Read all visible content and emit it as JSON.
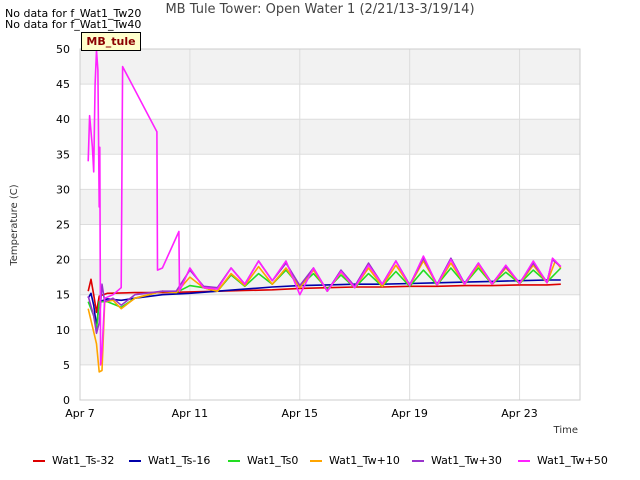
{
  "notices": [
    "No data for f_Wat1_Tw20",
    "No data for f_Wat1_Tw40"
  ],
  "site_tag": "MB_tule",
  "chart_data": {
    "type": "line",
    "title": "MB Tule Tower: Open Water 1 (2/21/13-3/19/14)",
    "xlabel": "Time",
    "ylabel": "Temperature (C)",
    "xlim": [
      7,
      25.2
    ],
    "ylim": [
      0,
      50
    ],
    "yticks": [
      0,
      5,
      10,
      15,
      20,
      25,
      30,
      35,
      40,
      45,
      50
    ],
    "xticks": [
      {
        "label": "Apr 7",
        "day": 7
      },
      {
        "label": "Apr 11",
        "day": 11
      },
      {
        "label": "Apr 15",
        "day": 15
      },
      {
        "label": "Apr 19",
        "day": 19
      },
      {
        "label": "Apr 23",
        "day": 23
      }
    ],
    "series": [
      {
        "name": "Wat1_Ts-32",
        "color": "#dd0000",
        "points": [
          [
            7.3,
            15.5
          ],
          [
            7.4,
            17.2
          ],
          [
            7.5,
            15.0
          ],
          [
            7.6,
            12.5
          ],
          [
            7.7,
            14.8
          ],
          [
            8.0,
            15.2
          ],
          [
            9.0,
            15.3
          ],
          [
            10.0,
            15.3
          ],
          [
            11.0,
            15.4
          ],
          [
            12.0,
            15.5
          ],
          [
            13.0,
            15.6
          ],
          [
            14.0,
            15.7
          ],
          [
            15.0,
            15.9
          ],
          [
            16.0,
            16.0
          ],
          [
            17.0,
            16.1
          ],
          [
            18.0,
            16.1
          ],
          [
            19.0,
            16.2
          ],
          [
            20.0,
            16.2
          ],
          [
            21.0,
            16.3
          ],
          [
            22.0,
            16.3
          ],
          [
            23.0,
            16.4
          ],
          [
            24.0,
            16.4
          ],
          [
            24.5,
            16.5
          ]
        ]
      },
      {
        "name": "Wat1_Ts-16",
        "color": "#0000aa",
        "points": [
          [
            7.3,
            14.5
          ],
          [
            7.4,
            15.2
          ],
          [
            7.5,
            13.5
          ],
          [
            7.6,
            10.5
          ],
          [
            7.7,
            14.0
          ],
          [
            8.0,
            14.4
          ],
          [
            8.5,
            14.2
          ],
          [
            9.0,
            14.5
          ],
          [
            10.0,
            15.0
          ],
          [
            11.0,
            15.2
          ],
          [
            12.0,
            15.5
          ],
          [
            13.0,
            15.8
          ],
          [
            14.0,
            16.1
          ],
          [
            15.0,
            16.3
          ],
          [
            16.0,
            16.4
          ],
          [
            17.0,
            16.5
          ],
          [
            18.0,
            16.5
          ],
          [
            19.0,
            16.6
          ],
          [
            20.0,
            16.7
          ],
          [
            21.0,
            16.8
          ],
          [
            22.0,
            16.9
          ],
          [
            23.0,
            17.0
          ],
          [
            24.0,
            17.1
          ],
          [
            24.5,
            17.1
          ]
        ]
      },
      {
        "name": "Wat1_Ts0",
        "color": "#22dd22",
        "points": [
          [
            7.3,
            14.0
          ],
          [
            7.5,
            12.0
          ],
          [
            7.6,
            10.0
          ],
          [
            7.7,
            14.0
          ],
          [
            8.0,
            14.0
          ],
          [
            8.5,
            13.2
          ],
          [
            9.0,
            14.5
          ],
          [
            10.0,
            15.5
          ],
          [
            10.5,
            15.3
          ],
          [
            11.0,
            16.3
          ],
          [
            11.5,
            16.0
          ],
          [
            12.0,
            15.5
          ],
          [
            12.5,
            17.8
          ],
          [
            13.0,
            16.2
          ],
          [
            13.5,
            18.0
          ],
          [
            14.0,
            16.5
          ],
          [
            14.5,
            18.5
          ],
          [
            15.0,
            16.2
          ],
          [
            15.5,
            18.0
          ],
          [
            16.0,
            15.8
          ],
          [
            16.5,
            17.8
          ],
          [
            17.0,
            16.0
          ],
          [
            17.5,
            18.0
          ],
          [
            18.0,
            16.2
          ],
          [
            18.5,
            18.3
          ],
          [
            19.0,
            16.2
          ],
          [
            19.5,
            18.5
          ],
          [
            20.0,
            16.4
          ],
          [
            20.5,
            18.8
          ],
          [
            21.0,
            16.5
          ],
          [
            21.5,
            18.8
          ],
          [
            22.0,
            16.5
          ],
          [
            22.5,
            18.2
          ],
          [
            23.0,
            16.6
          ],
          [
            23.5,
            18.5
          ],
          [
            24.0,
            16.8
          ],
          [
            24.5,
            18.8
          ]
        ]
      },
      {
        "name": "Wat1_Tw+10",
        "color": "#ffa500",
        "points": [
          [
            7.3,
            13.0
          ],
          [
            7.45,
            10.5
          ],
          [
            7.6,
            8.0
          ],
          [
            7.7,
            4.0
          ],
          [
            7.8,
            4.2
          ],
          [
            7.9,
            14.0
          ],
          [
            8.2,
            14.2
          ],
          [
            8.5,
            13.0
          ],
          [
            9.0,
            14.5
          ],
          [
            10.0,
            15.5
          ],
          [
            10.5,
            15.3
          ],
          [
            11.0,
            17.5
          ],
          [
            11.5,
            16.0
          ],
          [
            12.0,
            15.5
          ],
          [
            12.5,
            18.0
          ],
          [
            13.0,
            16.3
          ],
          [
            13.5,
            19.0
          ],
          [
            14.0,
            16.5
          ],
          [
            14.5,
            18.8
          ],
          [
            15.0,
            16.0
          ],
          [
            15.5,
            18.5
          ],
          [
            16.0,
            15.5
          ],
          [
            16.5,
            18.2
          ],
          [
            17.0,
            16.0
          ],
          [
            17.5,
            18.8
          ],
          [
            18.0,
            16.2
          ],
          [
            18.5,
            19.2
          ],
          [
            19.0,
            16.3
          ],
          [
            19.5,
            19.8
          ],
          [
            20.0,
            16.4
          ],
          [
            20.5,
            19.5
          ],
          [
            21.0,
            16.5
          ],
          [
            21.5,
            19.2
          ],
          [
            22.0,
            16.5
          ],
          [
            22.5,
            18.8
          ],
          [
            23.0,
            16.6
          ],
          [
            23.5,
            19.2
          ],
          [
            24.0,
            16.7
          ],
          [
            24.3,
            19.8
          ],
          [
            24.5,
            18.8
          ]
        ]
      },
      {
        "name": "Wat1_Tw+30",
        "color": "#9933cc",
        "points": [
          [
            7.3,
            14.8
          ],
          [
            7.5,
            12.0
          ],
          [
            7.6,
            9.5
          ],
          [
            7.7,
            11.0
          ],
          [
            7.8,
            16.5
          ],
          [
            7.9,
            14.0
          ],
          [
            8.2,
            14.5
          ],
          [
            8.5,
            13.5
          ],
          [
            9.0,
            15.0
          ],
          [
            10.0,
            15.5
          ],
          [
            10.5,
            15.5
          ],
          [
            11.0,
            18.5
          ],
          [
            11.5,
            16.2
          ],
          [
            12.0,
            16.0
          ],
          [
            12.5,
            18.8
          ],
          [
            13.0,
            16.5
          ],
          [
            13.5,
            19.8
          ],
          [
            14.0,
            17.0
          ],
          [
            14.5,
            19.5
          ],
          [
            15.0,
            16.3
          ],
          [
            15.5,
            18.8
          ],
          [
            16.0,
            15.5
          ],
          [
            16.5,
            18.5
          ],
          [
            17.0,
            16.2
          ],
          [
            17.5,
            19.5
          ],
          [
            18.0,
            16.5
          ],
          [
            18.5,
            19.8
          ],
          [
            19.0,
            16.4
          ],
          [
            19.5,
            20.2
          ],
          [
            20.0,
            16.5
          ],
          [
            20.5,
            20.2
          ],
          [
            21.0,
            16.6
          ],
          [
            21.5,
            19.5
          ],
          [
            22.0,
            16.6
          ],
          [
            22.5,
            19.0
          ],
          [
            23.0,
            16.7
          ],
          [
            23.5,
            19.5
          ],
          [
            24.0,
            16.8
          ],
          [
            24.2,
            20.0
          ],
          [
            24.5,
            19.0
          ]
        ]
      },
      {
        "name": "Wat1_Tw+50",
        "color": "#ff22ff",
        "points": [
          [
            7.3,
            34.0
          ],
          [
            7.35,
            40.5
          ],
          [
            7.45,
            36.0
          ],
          [
            7.5,
            32.5
          ],
          [
            7.55,
            45.0
          ],
          [
            7.6,
            49.8
          ],
          [
            7.65,
            47.0
          ],
          [
            7.7,
            27.5
          ],
          [
            7.72,
            36.0
          ],
          [
            7.75,
            5.0
          ],
          [
            7.8,
            7.0
          ],
          [
            7.9,
            14.5
          ],
          [
            8.2,
            15.0
          ],
          [
            8.5,
            16.0
          ],
          [
            8.55,
            47.5
          ],
          [
            9.8,
            38.2
          ],
          [
            9.82,
            18.5
          ],
          [
            10.0,
            18.8
          ],
          [
            10.6,
            24.0
          ],
          [
            10.62,
            15.5
          ],
          [
            11.0,
            18.8
          ],
          [
            11.5,
            16.0
          ],
          [
            12.0,
            15.8
          ],
          [
            12.5,
            18.8
          ],
          [
            13.0,
            16.5
          ],
          [
            13.5,
            19.8
          ],
          [
            14.0,
            17.0
          ],
          [
            14.5,
            19.8
          ],
          [
            15.0,
            15.0
          ],
          [
            15.5,
            18.8
          ],
          [
            16.0,
            15.5
          ],
          [
            16.5,
            18.3
          ],
          [
            17.0,
            16.0
          ],
          [
            17.5,
            19.2
          ],
          [
            18.0,
            16.5
          ],
          [
            18.5,
            19.8
          ],
          [
            19.0,
            16.3
          ],
          [
            19.5,
            20.5
          ],
          [
            20.0,
            16.4
          ],
          [
            20.5,
            20.0
          ],
          [
            21.0,
            16.5
          ],
          [
            21.5,
            19.5
          ],
          [
            22.0,
            16.5
          ],
          [
            22.5,
            19.2
          ],
          [
            23.0,
            16.6
          ],
          [
            23.5,
            19.8
          ],
          [
            24.0,
            16.7
          ],
          [
            24.2,
            20.2
          ],
          [
            24.5,
            19.0
          ]
        ]
      }
    ]
  }
}
